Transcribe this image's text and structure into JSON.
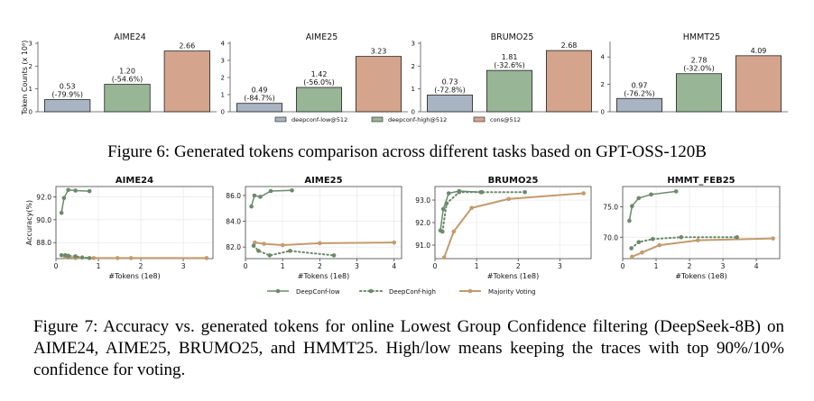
{
  "figure6": {
    "caption": "Figure 6: Generated tokens comparison across different tasks based on GPT-OSS-120B",
    "legend": [
      "deepconf-low@512",
      "deepconf-high@512",
      "cons@512"
    ]
  },
  "figure7": {
    "caption": "Figure 7: Accuracy vs. generated tokens for online Lowest Group Confidence filtering (DeepSeek-8B) on AIME24, AIME25, BRUMO25, and HMMT25. High/low means keeping the traces with top 90%/10% confidence for voting.",
    "legend": [
      "DeepConf-low",
      "DeepConf-high",
      "Majority Voting"
    ]
  },
  "chart_data": [
    {
      "type": "bar",
      "title": "AIME24",
      "ylabel": "Token Counts (x 10⁸)",
      "categories": [
        "deepconf-low@512",
        "deepconf-high@512",
        "cons@512"
      ],
      "values": [
        0.53,
        1.2,
        2.66
      ],
      "labels": [
        "0.53\n(-79.9%)",
        "1.20\n(-54.6%)",
        "2.66"
      ],
      "ylim": [
        0,
        3
      ],
      "yticks": [
        0,
        1,
        2,
        3
      ],
      "colors": [
        "#a9b4c2",
        "#98b596",
        "#d4a48c"
      ]
    },
    {
      "type": "bar",
      "title": "AIME25",
      "ylabel": "",
      "categories": [
        "deepconf-low@512",
        "deepconf-high@512",
        "cons@512"
      ],
      "values": [
        0.49,
        1.42,
        3.23
      ],
      "labels": [
        "0.49\n(-84.7%)",
        "1.42\n(-56.0%)",
        "3.23"
      ],
      "ylim": [
        0,
        4
      ],
      "yticks": [
        0,
        1,
        2,
        3,
        4
      ],
      "colors": [
        "#a9b4c2",
        "#98b596",
        "#d4a48c"
      ]
    },
    {
      "type": "bar",
      "title": "BRUMO25",
      "ylabel": "",
      "categories": [
        "deepconf-low@512",
        "deepconf-high@512",
        "cons@512"
      ],
      "values": [
        0.73,
        1.81,
        2.68
      ],
      "labels": [
        "0.73\n(-72.8%)",
        "1.81\n(-32.6%)",
        "2.68"
      ],
      "ylim": [
        0,
        3
      ],
      "yticks": [
        0,
        1,
        2,
        3
      ],
      "colors": [
        "#a9b4c2",
        "#98b596",
        "#d4a48c"
      ]
    },
    {
      "type": "bar",
      "title": "HMMT25",
      "ylabel": "",
      "categories": [
        "deepconf-low@512",
        "deepconf-high@512",
        "cons@512"
      ],
      "values": [
        0.97,
        2.78,
        4.09
      ],
      "labels": [
        "0.97\n(-76.2%)",
        "2.78\n(-32.0%)",
        "4.09"
      ],
      "ylim": [
        0,
        5
      ],
      "yticks": [
        0,
        2,
        4
      ],
      "colors": [
        "#a9b4c2",
        "#98b596",
        "#d4a48c"
      ]
    },
    {
      "type": "line",
      "title": "AIME24",
      "xlabel": "#Tokens (1e8)",
      "ylabel": "Accuracy(%)",
      "xlim": [
        0,
        3.7
      ],
      "ylim": [
        86.6,
        92.9
      ],
      "xticks": [
        0,
        1,
        2,
        3
      ],
      "yticks": [
        88.0,
        90.0,
        92.0
      ],
      "series": [
        {
          "name": "DeepConf-low",
          "style": "solid",
          "color": "#6a8a6a",
          "x": [
            0.13,
            0.19,
            0.29,
            0.46,
            0.79
          ],
          "y": [
            90.6,
            91.9,
            92.6,
            92.55,
            92.5
          ]
        },
        {
          "name": "DeepConf-high",
          "style": "dotted",
          "color": "#6a8a6a",
          "x": [
            0.13,
            0.22,
            0.29,
            0.46,
            0.62,
            0.79
          ],
          "y": [
            86.9,
            86.9,
            86.85,
            86.8,
            86.7,
            86.65
          ]
        },
        {
          "name": "Majority Voting",
          "style": "solid",
          "color": "#c49a6c",
          "x": [
            0.22,
            0.46,
            0.89,
            1.45,
            1.77,
            3.55
          ],
          "y": [
            86.75,
            86.65,
            86.65,
            86.65,
            86.65,
            86.65
          ]
        }
      ]
    },
    {
      "type": "line",
      "title": "AIME25",
      "xlabel": "#Tokens (1e8)",
      "ylabel": "",
      "xlim": [
        0,
        4.2
      ],
      "ylim": [
        81.1,
        86.7
      ],
      "xticks": [
        0,
        1,
        2,
        3,
        4
      ],
      "yticks": [
        82.0,
        84.0,
        86.0
      ],
      "series": [
        {
          "name": "DeepConf-low",
          "style": "solid",
          "color": "#6a8a6a",
          "x": [
            0.16,
            0.24,
            0.4,
            0.68,
            1.25
          ],
          "y": [
            85.15,
            86.0,
            85.9,
            86.35,
            86.4
          ]
        },
        {
          "name": "DeepConf-high",
          "style": "dotted",
          "color": "#6a8a6a",
          "x": [
            0.22,
            0.35,
            0.65,
            1.2,
            2.38
          ],
          "y": [
            82.1,
            81.7,
            81.35,
            81.7,
            81.35
          ]
        },
        {
          "name": "Majority Voting",
          "style": "solid",
          "color": "#c49a6c",
          "x": [
            0.25,
            0.5,
            1.0,
            2.0,
            4.0
          ],
          "y": [
            82.35,
            82.25,
            82.15,
            82.3,
            82.35
          ]
        }
      ]
    },
    {
      "type": "line",
      "title": "BRUMO25",
      "xlabel": "#Tokens (1e8)",
      "ylabel": "",
      "xlim": [
        0,
        3.75
      ],
      "ylim": [
        90.4,
        93.6
      ],
      "xticks": [
        0,
        1,
        2,
        3
      ],
      "yticks": [
        91.0,
        92.0,
        93.0
      ],
      "series": [
        {
          "name": "DeepConf-low",
          "style": "solid",
          "color": "#6a8a6a",
          "x": [
            0.13,
            0.2,
            0.33,
            0.58,
            1.1
          ],
          "y": [
            91.65,
            92.6,
            93.3,
            93.4,
            93.35
          ]
        },
        {
          "name": "DeepConf-high",
          "style": "dotted",
          "color": "#6a8a6a",
          "x": [
            0.18,
            0.28,
            0.58,
            1.13,
            2.16
          ],
          "y": [
            91.6,
            92.85,
            93.35,
            93.35,
            93.35
          ]
        },
        {
          "name": "Majority Voting",
          "style": "solid",
          "color": "#c49a6c",
          "x": [
            0.22,
            0.45,
            0.88,
            1.77,
            3.57
          ],
          "y": [
            90.45,
            91.6,
            92.65,
            93.05,
            93.3
          ]
        }
      ]
    },
    {
      "type": "line",
      "title": "HMMT_FEB25",
      "xlabel": "#Tokens (1e8)",
      "ylabel": "",
      "xlim": [
        0,
        4.7
      ],
      "ylim": [
        66.5,
        78.3
      ],
      "xticks": [
        0,
        1,
        2,
        3,
        4
      ],
      "yticks": [
        70.0,
        75.0
      ],
      "series": [
        {
          "name": "DeepConf-low",
          "style": "solid",
          "color": "#6a8a6a",
          "x": [
            0.2,
            0.28,
            0.48,
            0.85,
            1.6
          ],
          "y": [
            72.7,
            75.1,
            76.4,
            77.0,
            77.5
          ]
        },
        {
          "name": "DeepConf-high",
          "style": "dotted",
          "color": "#6a8a6a",
          "x": [
            0.26,
            0.48,
            0.9,
            1.75,
            3.42
          ],
          "y": [
            68.2,
            69.2,
            69.7,
            70.0,
            70.0
          ]
        },
        {
          "name": "Majority Voting",
          "style": "solid",
          "color": "#c49a6c",
          "x": [
            0.28,
            0.58,
            1.1,
            2.25,
            4.5
          ],
          "y": [
            66.8,
            67.5,
            68.7,
            69.5,
            69.8
          ]
        }
      ]
    }
  ]
}
